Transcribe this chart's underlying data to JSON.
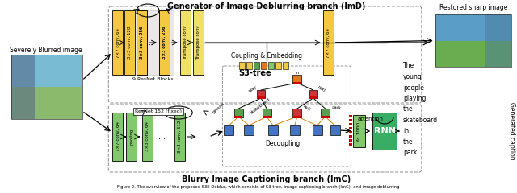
{
  "title": "Generator of Image Deblurring branch (ImD)",
  "title2": "Blurry Image Captioning branch (ImC)",
  "caption": "Figure 2. The overview of the proposed S3E-Deblur, which consists of S3-tree, image captioning branch (ImC), and image deblurring",
  "bg_color": "#ffffff",
  "yellow_color": "#f5c842",
  "green_color": "#82c96e",
  "orange_node": "#e07820",
  "blue_node": "#4472c4",
  "green_node": "#5a9e50",
  "red_bar": "#cc0000",
  "conv_labels_upper": [
    "7×7 conv, 64",
    "3×3 conv, 128",
    "3×3 conv, 256",
    "3×3 conv, 256",
    "Transpose conv",
    "Transpose conv",
    "7×7 conv, 64"
  ],
  "conv_labels_lower": [
    "7×7 conv, 64",
    "pooling",
    "3×3 conv, 64",
    "3×3 conv, 512"
  ],
  "resnet_label": "9 ResNet Blocks",
  "resnet152_label": "ResNet 152 (fixed)",
  "s3tree_label": "S3-tree",
  "coupling_label": "Coupling & Embedding",
  "decoupling_label": "Decoupling",
  "attention_label": "attention",
  "fc_label": "fc 1000",
  "rnn_label": "RNN",
  "sharp_label": "Restored sharp image",
  "blurred_label": "Severely Blurred image",
  "generated_label": "Generated caption",
  "text_caption": [
    "The",
    "young",
    "people",
    "playing",
    "the",
    "skateboard",
    "in",
    "the",
    "park"
  ]
}
